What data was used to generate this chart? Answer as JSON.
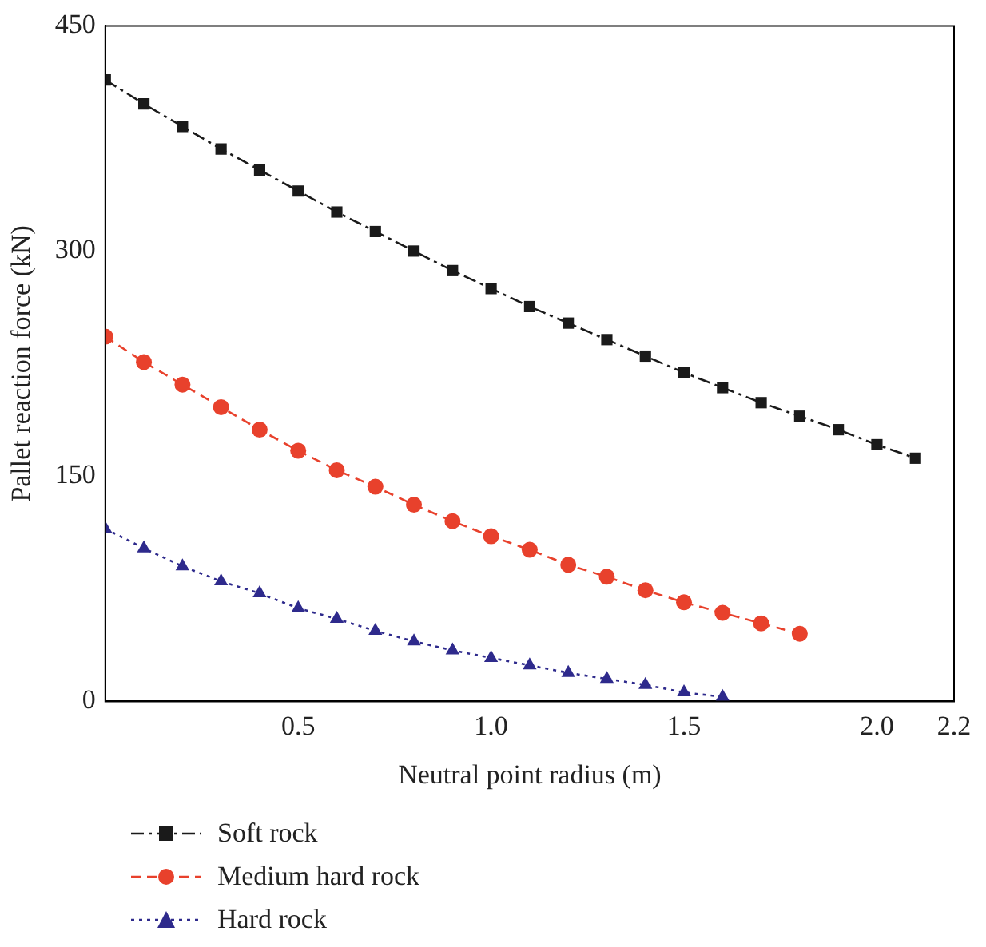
{
  "chart_data": {
    "type": "line",
    "xlabel": "Neutral point radius (m)",
    "ylabel": "Pallet reaction force (kN)",
    "xlim": [
      0,
      2.2
    ],
    "xticks": [
      0.5,
      {
        "value": 1,
        "label": "1.0"
      },
      1.5,
      {
        "value": 2,
        "label": "2.0"
      },
      2.2
    ],
    "ylim": [
      0,
      450
    ],
    "yticks": [
      0,
      150,
      300,
      450
    ],
    "grid": false,
    "legend": "bottom left",
    "series": [
      {
        "name": "Soft rock",
        "color": "#1a1a1a",
        "marker": "square",
        "line_style": "dashdot",
        "x": [
          0,
          0.1,
          0.2,
          0.3,
          0.4,
          0.5,
          0.6,
          0.7,
          0.8,
          0.9,
          1.0,
          1.1,
          1.2,
          1.3,
          1.4,
          1.5,
          1.6,
          1.7,
          1.8,
          1.9,
          2.0,
          2.1
        ],
        "values": [
          414,
          398,
          383,
          368,
          354,
          340,
          326,
          313,
          300,
          287,
          275,
          263,
          252,
          241,
          230,
          219,
          209,
          199,
          190,
          181,
          171,
          162
        ]
      },
      {
        "name": "Medium hard rock",
        "color": "#e8412c",
        "marker": "circle",
        "line_style": "dashed",
        "x": [
          0,
          0.1,
          0.2,
          0.3,
          0.4,
          0.5,
          0.6,
          0.7,
          0.8,
          0.9,
          1.0,
          1.1,
          1.2,
          1.3,
          1.4,
          1.5,
          1.6,
          1.7,
          1.8
        ],
        "values": [
          243,
          226,
          211,
          196,
          181,
          167,
          154,
          143,
          131,
          120,
          110,
          101,
          91,
          83,
          74,
          66,
          59,
          52,
          45
        ]
      },
      {
        "name": "Hard rock",
        "color": "#2e2a8c",
        "marker": "triangle",
        "line_style": "dotted",
        "x": [
          0,
          0.1,
          0.2,
          0.3,
          0.4,
          0.5,
          0.6,
          0.7,
          0.8,
          0.9,
          1.0,
          1.1,
          1.2,
          1.3,
          1.4,
          1.5,
          1.6
        ],
        "values": [
          115,
          102,
          90,
          80,
          72,
          62,
          55,
          47,
          40,
          34,
          29,
          24,
          19,
          15,
          11,
          6,
          3
        ]
      }
    ]
  }
}
